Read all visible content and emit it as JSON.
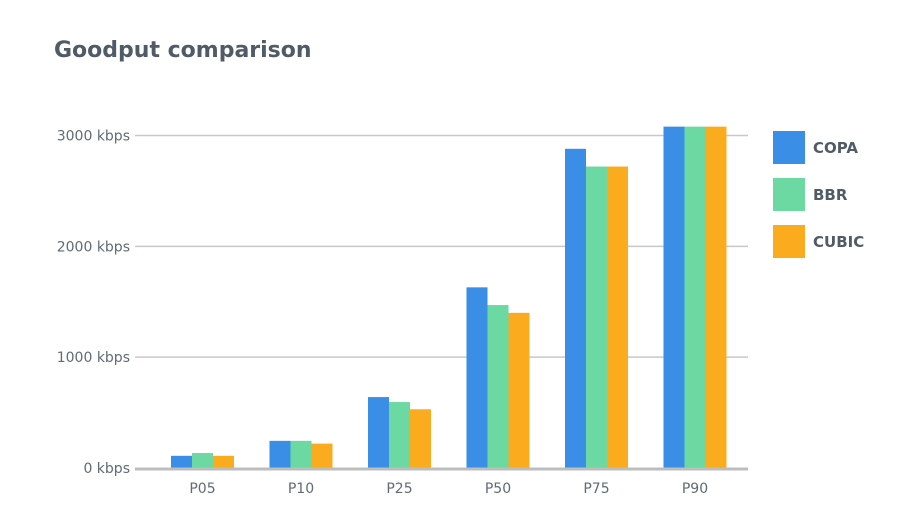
{
  "chart_data": {
    "type": "bar",
    "title": "Goodput comparison",
    "xlabel": "",
    "ylabel": "",
    "categories": [
      "P05",
      "P10",
      "P25",
      "P50",
      "P75",
      "P90"
    ],
    "series": [
      {
        "name": "COPA",
        "color": "#3a8ee6",
        "values": [
          110,
          245,
          640,
          1630,
          2880,
          3080
        ]
      },
      {
        "name": "BBR",
        "color": "#6bd9a1",
        "values": [
          135,
          245,
          595,
          1470,
          2720,
          3080
        ]
      },
      {
        "name": "CUBIC",
        "color": "#fbab1e",
        "values": [
          110,
          220,
          530,
          1400,
          2720,
          3080
        ]
      }
    ],
    "ylim": [
      0,
      3000
    ],
    "yticks": [
      0,
      1000,
      2000,
      3000
    ],
    "ytick_labels": [
      "0 kbps",
      "1000 kbps",
      "2000 kbps",
      "3000 kbps"
    ],
    "grid": true,
    "legend_position": "right"
  }
}
